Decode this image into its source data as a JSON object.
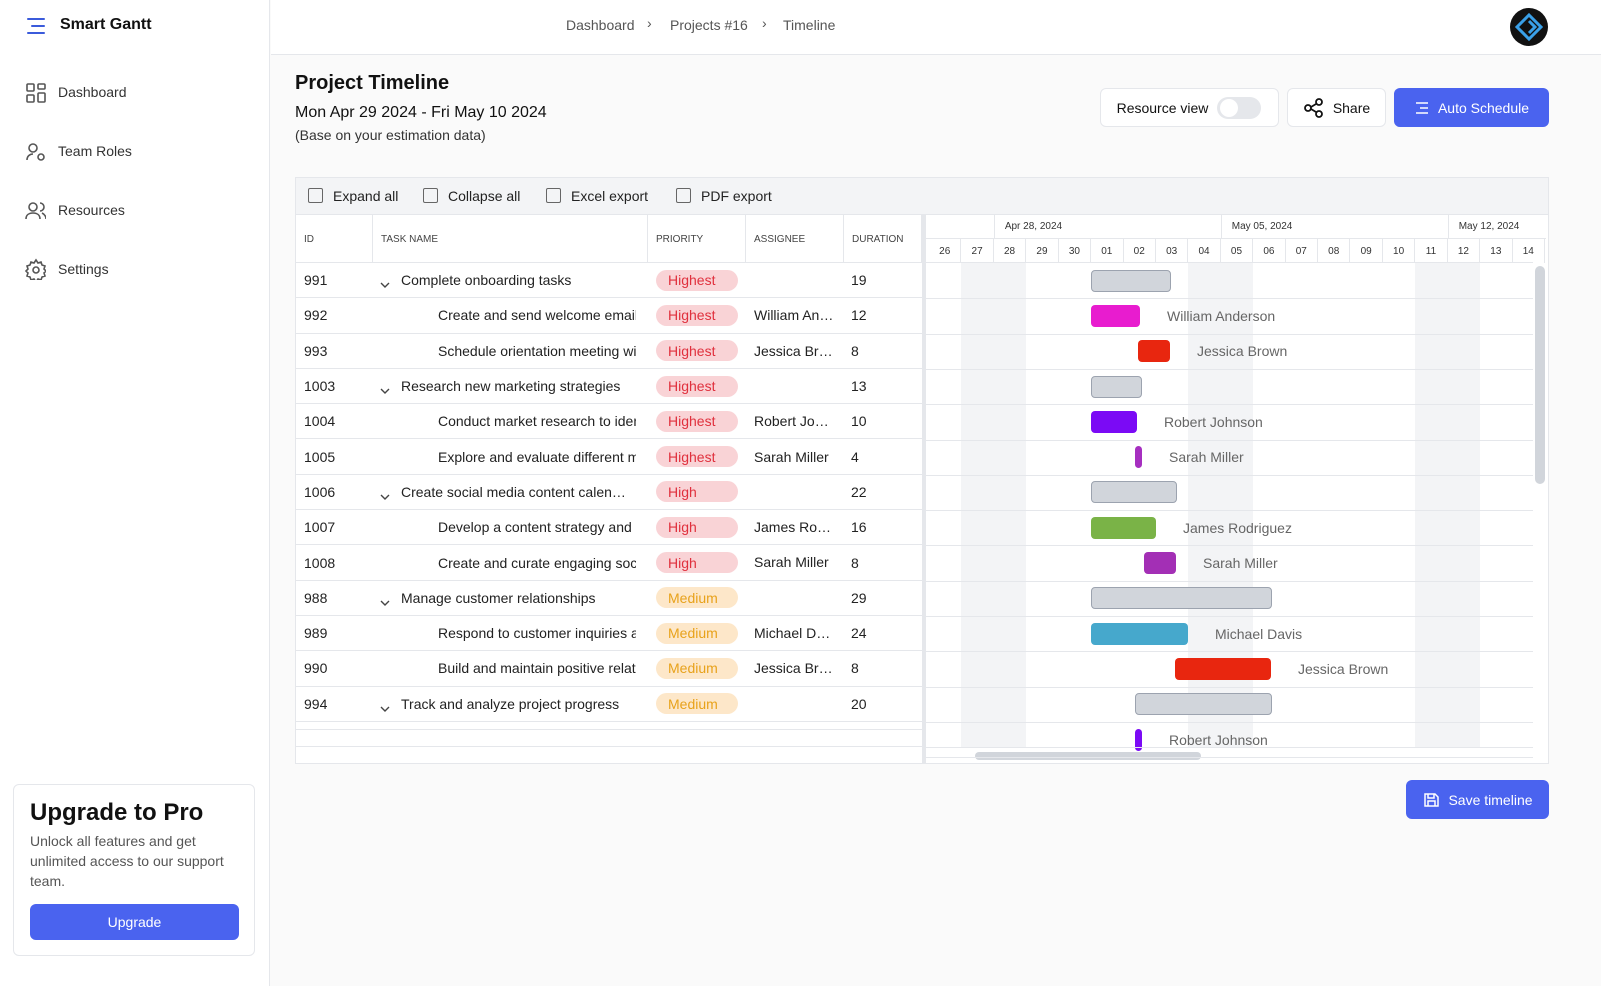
{
  "app": {
    "name": "Smart Gantt"
  },
  "nav": [
    {
      "label": "Dashboard"
    },
    {
      "label": "Team Roles"
    },
    {
      "label": "Resources"
    },
    {
      "label": "Settings"
    }
  ],
  "upgrade": {
    "title": "Upgrade to Pro",
    "text": "Unlock all features and get unlimited access to our support team.",
    "button": "Upgrade"
  },
  "breadcrumb": [
    "Dashboard",
    "Projects #16",
    "Timeline"
  ],
  "header": {
    "title": "Project Timeline",
    "dates": "Mon Apr 29 2024 - Fri May 10 2024",
    "note": "(Base on your estimation data)"
  },
  "actions": {
    "resource_view": "Resource view",
    "share": "Share",
    "auto_schedule": "Auto Schedule"
  },
  "toolbar": [
    "Expand all",
    "Collapse all",
    "Excel export",
    "PDF export"
  ],
  "columns": [
    "ID",
    "TASK NAME",
    "PRIORITY",
    "ASSIGNEE",
    "DURATION"
  ],
  "weeks": [
    "Apr 28, 2024",
    "May 05, 2024",
    "May 12, 2024"
  ],
  "days": [
    "26",
    "27",
    "28",
    "29",
    "30",
    "01",
    "02",
    "03",
    "04",
    "05",
    "06",
    "07",
    "08",
    "09",
    "10",
    "11",
    "12",
    "13",
    "14"
  ],
  "rows": [
    {
      "id": "991",
      "name": "Complete onboarding tasks",
      "priority": "Highest",
      "duration": 19,
      "expanded": true
    },
    {
      "id": "992",
      "name": "Create and send welcome email t…",
      "priority": "Highest",
      "assignee": "William Anderson",
      "duration": 12
    },
    {
      "id": "993",
      "name": "Schedule orientation meeting wit…",
      "priority": "Highest",
      "assignee": "Jessica Brown",
      "duration": 8
    },
    {
      "id": "1003",
      "name": "Research new marketing strategies",
      "priority": "Highest",
      "duration": 13,
      "expanded": true
    },
    {
      "id": "1004",
      "name": "Conduct market research to ident…",
      "priority": "Highest",
      "assignee": "Robert Johnson",
      "duration": 10
    },
    {
      "id": "1005",
      "name": "Explore and evaluate different ma…",
      "priority": "Highest",
      "assignee": "Sarah Miller",
      "duration": 4
    },
    {
      "id": "1006",
      "name": "Create social media content calen…",
      "priority": "High",
      "duration": 22,
      "expanded": true
    },
    {
      "id": "1007",
      "name": "Develop a content strategy and s…",
      "priority": "High",
      "assignee": "James Rodriguez",
      "duration": 16
    },
    {
      "id": "1008",
      "name": "Create and curate engaging soci…",
      "priority": "High",
      "assignee": "Sarah Miller",
      "duration": 8
    },
    {
      "id": "988",
      "name": "Manage customer relationships",
      "priority": "Medium",
      "duration": 29,
      "expanded": true
    },
    {
      "id": "989",
      "name": "Respond to customer inquiries an…",
      "priority": "Medium",
      "assignee": "Michael Davis",
      "duration": 24
    },
    {
      "id": "990",
      "name": "Build and maintain positive relatio…",
      "priority": "Medium",
      "assignee": "Jessica Brown",
      "duration": 8
    },
    {
      "id": "994",
      "name": "Track and analyze project progress",
      "priority": "Medium",
      "duration": 20,
      "expanded": true
    },
    {
      "assignee": "Robert Johnson"
    }
  ],
  "save": "Save timeline"
}
